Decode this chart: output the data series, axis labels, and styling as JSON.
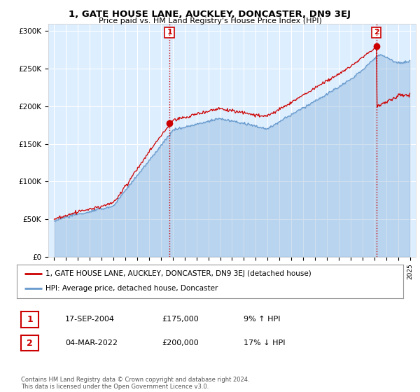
{
  "title": "1, GATE HOUSE LANE, AUCKLEY, DONCASTER, DN9 3EJ",
  "subtitle": "Price paid vs. HM Land Registry's House Price Index (HPI)",
  "ylabel_ticks": [
    "£0",
    "£50K",
    "£100K",
    "£150K",
    "£200K",
    "£250K",
    "£300K"
  ],
  "ytick_values": [
    0,
    50000,
    100000,
    150000,
    200000,
    250000,
    300000
  ],
  "ylim": [
    0,
    310000
  ],
  "xlim_start": 1994.5,
  "xlim_end": 2025.5,
  "grid_color": "#cccccc",
  "chart_bg_color": "#ddeeff",
  "hpi_color": "#6699cc",
  "price_color": "#cc0000",
  "vline_color": "#cc0000",
  "annotation_box_color": "#cc0000",
  "sale1_x": 2004.72,
  "sale1_y": 175000,
  "sale1_label": "1",
  "sale2_x": 2022.17,
  "sale2_y": 200000,
  "sale2_label": "2",
  "legend_line1": "1, GATE HOUSE LANE, AUCKLEY, DONCASTER, DN9 3EJ (detached house)",
  "legend_line2": "HPI: Average price, detached house, Doncaster",
  "table_row1_num": "1",
  "table_row1_date": "17-SEP-2004",
  "table_row1_price": "£175,000",
  "table_row1_hpi": "9% ↑ HPI",
  "table_row2_num": "2",
  "table_row2_date": "04-MAR-2022",
  "table_row2_price": "£200,000",
  "table_row2_hpi": "17% ↓ HPI",
  "footer": "Contains HM Land Registry data © Crown copyright and database right 2024.\nThis data is licensed under the Open Government Licence v3.0.",
  "background_color": "#ffffff"
}
